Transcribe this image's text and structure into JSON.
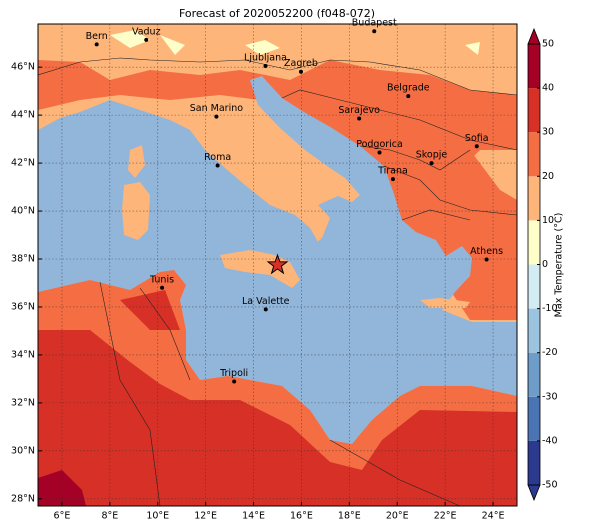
{
  "chart_data": {
    "type": "map",
    "title": "Forecast of 2020052200 (f048-072)",
    "xlim": [
      5,
      25
    ],
    "ylim": [
      27.7,
      47.8
    ],
    "xticks": [
      {
        "value": 6,
        "label": "6°E"
      },
      {
        "value": 8,
        "label": "8°E"
      },
      {
        "value": 10,
        "label": "10°E"
      },
      {
        "value": 12,
        "label": "12°E"
      },
      {
        "value": 14,
        "label": "14°E"
      },
      {
        "value": 16,
        "label": "16°E"
      },
      {
        "value": 18,
        "label": "18°E"
      },
      {
        "value": 20,
        "label": "20°E"
      },
      {
        "value": 22,
        "label": "22°E"
      },
      {
        "value": 24,
        "label": "24°E"
      }
    ],
    "yticks": [
      {
        "value": 28,
        "label": "28°N"
      },
      {
        "value": 30,
        "label": "30°N"
      },
      {
        "value": 32,
        "label": "32°N"
      },
      {
        "value": 34,
        "label": "34°N"
      },
      {
        "value": 36,
        "label": "36°N"
      },
      {
        "value": 38,
        "label": "38°N"
      },
      {
        "value": 40,
        "label": "40°N"
      },
      {
        "value": 42,
        "label": "42°N"
      },
      {
        "value": 44,
        "label": "44°N"
      },
      {
        "value": 46,
        "label": "46°N"
      }
    ],
    "grid": true,
    "cities": [
      "Bern",
      "Vaduz",
      "Budapest",
      "Ljubljana",
      "Zagreb",
      "Belgrade",
      "San Marino",
      "Sarajevo",
      "Podgorica",
      "Skopje",
      "Sofia",
      "Roma",
      "Tirana",
      "Athens",
      "Tunis",
      "La Valette",
      "Tripoli"
    ],
    "colorbar": {
      "label": "Max Temperature (°C)",
      "lim": [
        -50,
        50
      ],
      "ticks": [
        -50,
        -40,
        -30,
        -20,
        -10,
        0,
        10,
        20,
        30,
        40,
        50
      ],
      "colors": [
        "#2b3a8f",
        "#4a74b3",
        "#6f9dc9",
        "#9cc3df",
        "#d3ebf2",
        "#fefec8",
        "#fdb57a",
        "#f46d43",
        "#d73027",
        "#a50026"
      ]
    }
  }
}
